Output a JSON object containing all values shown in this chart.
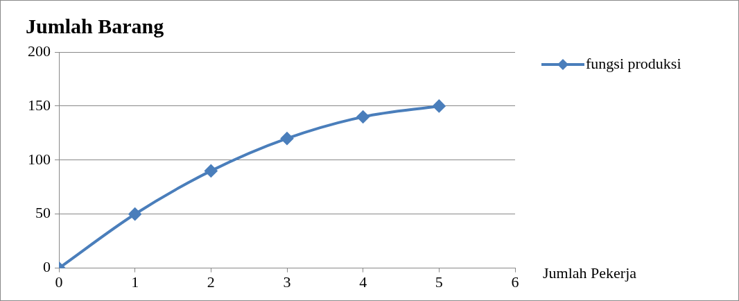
{
  "chart_data": {
    "type": "line",
    "title": "Jumlah Barang",
    "xlabel": "Jumlah Pekerja",
    "x": [
      0,
      1,
      2,
      3,
      4,
      5
    ],
    "series": [
      {
        "name": "fungsi produksi",
        "color": "#4a7ebb",
        "values": [
          0,
          50,
          90,
          120,
          140,
          150
        ]
      }
    ],
    "xlim": [
      0,
      6
    ],
    "xticks": [
      0,
      1,
      2,
      3,
      4,
      5,
      6
    ],
    "ylim": [
      0,
      200
    ],
    "yticks": [
      0,
      50,
      100,
      150,
      200
    ],
    "grid": "y",
    "legend": "right",
    "marker": "diamond",
    "line_style": "solid"
  }
}
